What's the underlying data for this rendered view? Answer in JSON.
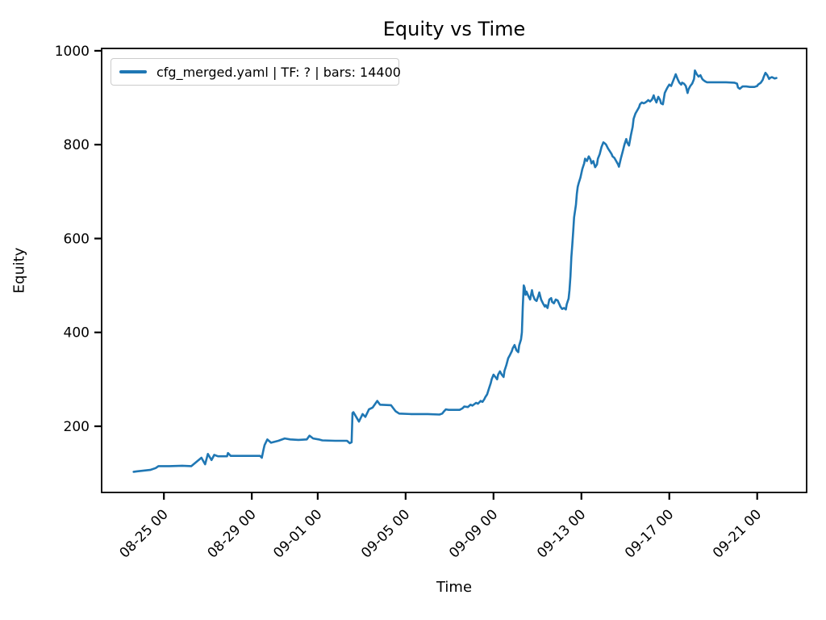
{
  "chart": {
    "title": "Equity vs Time",
    "xlabel": "Time",
    "ylabel": "Equity",
    "legend_label": "cfg_merged.yaml | TF: ? | bars: 14400"
  },
  "chart_data": {
    "type": "line",
    "title": "Equity vs Time",
    "xlabel": "Time",
    "ylabel": "Equity",
    "legend": [
      "cfg_merged.yaml | TF: ? | bars: 14400"
    ],
    "legend_position": "upper left",
    "grid": false,
    "line_color": "#1f77b4",
    "spine_color": "#000000",
    "x_tick_labels": [
      "08-25 00",
      "08-29 00",
      "09-01 00",
      "09-05 00",
      "09-09 00",
      "09-13 00",
      "09-17 00",
      "09-21 00"
    ],
    "y_ticks": [
      200,
      400,
      600,
      800,
      1000
    ],
    "xlim": [
      "08-22 04",
      "09-23 06"
    ],
    "ylim": [
      59,
      1005
    ],
    "series": [
      {
        "name": "cfg_merged.yaml | TF: ? | bars: 14400",
        "points": [
          [
            "08-23 15",
            103
          ],
          [
            "08-23 19",
            104
          ],
          [
            "08-24 09",
            107
          ],
          [
            "08-24 15",
            111
          ],
          [
            "08-24 18",
            115
          ],
          [
            "08-25 06",
            115
          ],
          [
            "08-25 20",
            116
          ],
          [
            "08-26 06",
            115
          ],
          [
            "08-26 17",
            133
          ],
          [
            "08-26 21",
            119
          ],
          [
            "08-27 00",
            141
          ],
          [
            "08-27 04",
            128
          ],
          [
            "08-27 07",
            139
          ],
          [
            "08-27 11",
            136
          ],
          [
            "08-27 21",
            136
          ],
          [
            "08-27 22",
            143
          ],
          [
            "08-28 01",
            137
          ],
          [
            "08-29 09",
            137
          ],
          [
            "08-29 11",
            133
          ],
          [
            "08-29 13",
            152
          ],
          [
            "08-29 14",
            160
          ],
          [
            "08-29 17",
            172
          ],
          [
            "08-29 21",
            165
          ],
          [
            "08-30 05",
            169
          ],
          [
            "08-30 12",
            174
          ],
          [
            "08-30 18",
            172
          ],
          [
            "08-31 03",
            171
          ],
          [
            "08-31 12",
            172
          ],
          [
            "08-31 15",
            180
          ],
          [
            "08-31 19",
            174
          ],
          [
            "09-01 01",
            172
          ],
          [
            "09-01 05",
            170
          ],
          [
            "09-01 19",
            169
          ],
          [
            "09-02 08",
            169
          ],
          [
            "09-02 11",
            164
          ],
          [
            "09-02 13",
            166
          ],
          [
            "09-02 14",
            228
          ],
          [
            "09-02 15",
            230
          ],
          [
            "09-02 21",
            210
          ],
          [
            "09-03 01",
            226
          ],
          [
            "09-03 04",
            220
          ],
          [
            "09-03 08",
            236
          ],
          [
            "09-03 12",
            240
          ],
          [
            "09-03 17",
            254
          ],
          [
            "09-03 20",
            246
          ],
          [
            "09-04 08",
            245
          ],
          [
            "09-04 13",
            232
          ],
          [
            "09-04 17",
            227
          ],
          [
            "09-05 06",
            226
          ],
          [
            "09-06 00",
            226
          ],
          [
            "09-06 13",
            225
          ],
          [
            "09-06 16",
            227
          ],
          [
            "09-06 18",
            232
          ],
          [
            "09-06 20",
            236
          ],
          [
            "09-06 23",
            235
          ],
          [
            "09-07 11",
            235
          ],
          [
            "09-07 14",
            238
          ],
          [
            "09-07 16",
            242
          ],
          [
            "09-07 20",
            241
          ],
          [
            "09-07 23",
            246
          ],
          [
            "09-08 01",
            244
          ],
          [
            "09-08 05",
            250
          ],
          [
            "09-08 07",
            248
          ],
          [
            "09-08 10",
            254
          ],
          [
            "09-08 12",
            252
          ],
          [
            "09-08 14",
            258
          ],
          [
            "09-08 15",
            262
          ],
          [
            "09-08 17",
            268
          ],
          [
            "09-08 19",
            280
          ],
          [
            "09-08 21",
            292
          ],
          [
            "09-08 22",
            300
          ],
          [
            "09-09 00",
            310
          ],
          [
            "09-09 02",
            305
          ],
          [
            "09-09 04",
            300
          ],
          [
            "09-09 05",
            310
          ],
          [
            "09-09 07",
            317
          ],
          [
            "09-09 09",
            310
          ],
          [
            "09-09 11",
            305
          ],
          [
            "09-09 12",
            318
          ],
          [
            "09-09 14",
            330
          ],
          [
            "09-09 16",
            345
          ],
          [
            "09-09 18",
            352
          ],
          [
            "09-09 20",
            360
          ],
          [
            "09-09 21",
            366
          ],
          [
            "09-09 23",
            373
          ],
          [
            "09-10 01",
            362
          ],
          [
            "09-10 03",
            358
          ],
          [
            "09-10 04",
            372
          ],
          [
            "09-10 06",
            385
          ],
          [
            "09-10 07",
            400
          ],
          [
            "09-10 08",
            455
          ],
          [
            "09-10 09",
            500
          ],
          [
            "09-10 10",
            495
          ],
          [
            "09-10 11",
            480
          ],
          [
            "09-10 12",
            487
          ],
          [
            "09-10 14",
            478
          ],
          [
            "09-10 16",
            470
          ],
          [
            "09-10 18",
            490
          ],
          [
            "09-10 19",
            480
          ],
          [
            "09-10 21",
            470
          ],
          [
            "09-10 23",
            467
          ],
          [
            "09-11 01",
            478
          ],
          [
            "09-11 02",
            485
          ],
          [
            "09-11 04",
            470
          ],
          [
            "09-11 06",
            462
          ],
          [
            "09-11 08",
            455
          ],
          [
            "09-11 09",
            458
          ],
          [
            "09-11 11",
            452
          ],
          [
            "09-11 13",
            470
          ],
          [
            "09-11 15",
            473
          ],
          [
            "09-11 16",
            465
          ],
          [
            "09-11 18",
            462
          ],
          [
            "09-11 20",
            470
          ],
          [
            "09-11 22",
            468
          ],
          [
            "09-12 00",
            460
          ],
          [
            "09-12 01",
            455
          ],
          [
            "09-12 03",
            450
          ],
          [
            "09-12 05",
            452
          ],
          [
            "09-12 07",
            449
          ],
          [
            "09-12 08",
            460
          ],
          [
            "09-12 10",
            472
          ],
          [
            "09-12 11",
            490
          ],
          [
            "09-12 12",
            520
          ],
          [
            "09-12 13",
            560
          ],
          [
            "09-12 14",
            585
          ],
          [
            "09-12 15",
            615
          ],
          [
            "09-12 16",
            645
          ],
          [
            "09-12 18",
            672
          ],
          [
            "09-12 19",
            695
          ],
          [
            "09-12 20",
            710
          ],
          [
            "09-12 21",
            718
          ],
          [
            "09-12 23",
            730
          ],
          [
            "09-13 01",
            748
          ],
          [
            "09-13 03",
            760
          ],
          [
            "09-13 04",
            770
          ],
          [
            "09-13 06",
            765
          ],
          [
            "09-13 08",
            775
          ],
          [
            "09-13 10",
            768
          ],
          [
            "09-13 11",
            760
          ],
          [
            "09-13 13",
            765
          ],
          [
            "09-13 15",
            752
          ],
          [
            "09-13 17",
            758
          ],
          [
            "09-13 18",
            770
          ],
          [
            "09-13 20",
            780
          ],
          [
            "09-13 22",
            795
          ],
          [
            "09-14 00",
            805
          ],
          [
            "09-14 02",
            802
          ],
          [
            "09-14 03",
            800
          ],
          [
            "09-14 05",
            792
          ],
          [
            "09-14 07",
            786
          ],
          [
            "09-14 09",
            780
          ],
          [
            "09-14 10",
            775
          ],
          [
            "09-14 12",
            772
          ],
          [
            "09-14 14",
            765
          ],
          [
            "09-14 16",
            758
          ],
          [
            "09-14 17",
            753
          ],
          [
            "09-14 19",
            770
          ],
          [
            "09-14 21",
            785
          ],
          [
            "09-14 23",
            800
          ],
          [
            "09-15 01",
            812
          ],
          [
            "09-15 02",
            805
          ],
          [
            "09-15 04",
            798
          ],
          [
            "09-15 06",
            820
          ],
          [
            "09-15 08",
            838
          ],
          [
            "09-15 09",
            855
          ],
          [
            "09-15 11",
            866
          ],
          [
            "09-15 13",
            873
          ],
          [
            "09-15 15",
            880
          ],
          [
            "09-15 16",
            886
          ],
          [
            "09-15 18",
            890
          ],
          [
            "09-15 20",
            888
          ],
          [
            "09-15 22",
            890
          ],
          [
            "09-16 00",
            893
          ],
          [
            "09-16 01",
            895
          ],
          [
            "09-16 03",
            892
          ],
          [
            "09-16 05",
            896
          ],
          [
            "09-16 07",
            905
          ],
          [
            "09-16 08",
            898
          ],
          [
            "09-16 10",
            890
          ],
          [
            "09-16 12",
            902
          ],
          [
            "09-16 14",
            895
          ],
          [
            "09-16 15",
            888
          ],
          [
            "09-16 17",
            886
          ],
          [
            "09-16 19",
            910
          ],
          [
            "09-16 21",
            918
          ],
          [
            "09-16 22",
            922
          ],
          [
            "09-17 00",
            928
          ],
          [
            "09-17 02",
            925
          ],
          [
            "09-17 04",
            935
          ],
          [
            "09-17 06",
            945
          ],
          [
            "09-17 07",
            950
          ],
          [
            "09-17 09",
            940
          ],
          [
            "09-17 11",
            932
          ],
          [
            "09-17 13",
            928
          ],
          [
            "09-17 14",
            932
          ],
          [
            "09-17 16",
            930
          ],
          [
            "09-17 18",
            925
          ],
          [
            "09-17 20",
            910
          ],
          [
            "09-17 21",
            918
          ],
          [
            "09-17 23",
            925
          ],
          [
            "09-18 01",
            930
          ],
          [
            "09-18 03",
            940
          ],
          [
            "09-18 04",
            958
          ],
          [
            "09-18 06",
            950
          ],
          [
            "09-18 08",
            945
          ],
          [
            "09-18 10",
            948
          ],
          [
            "09-18 12",
            940
          ],
          [
            "09-18 13",
            938
          ],
          [
            "09-18 15",
            935
          ],
          [
            "09-18 17",
            933
          ],
          [
            "09-18 20",
            933
          ],
          [
            "09-19 05",
            933
          ],
          [
            "09-19 14",
            933
          ],
          [
            "09-19 23",
            932
          ],
          [
            "09-20 02",
            930
          ],
          [
            "09-20 03",
            922
          ],
          [
            "09-20 05",
            919
          ],
          [
            "09-20 08",
            924
          ],
          [
            "09-20 12",
            924
          ],
          [
            "09-20 16",
            923
          ],
          [
            "09-20 21",
            923
          ],
          [
            "09-21 00",
            925
          ],
          [
            "09-21 01",
            928
          ],
          [
            "09-21 04",
            932
          ],
          [
            "09-21 06",
            938
          ],
          [
            "09-21 07",
            944
          ],
          [
            "09-21 09",
            953
          ],
          [
            "09-21 11",
            948
          ],
          [
            "09-21 13",
            940
          ],
          [
            "09-21 14",
            942
          ],
          [
            "09-21 16",
            944
          ],
          [
            "09-21 19",
            941
          ],
          [
            "09-21 21",
            942
          ]
        ]
      }
    ]
  }
}
